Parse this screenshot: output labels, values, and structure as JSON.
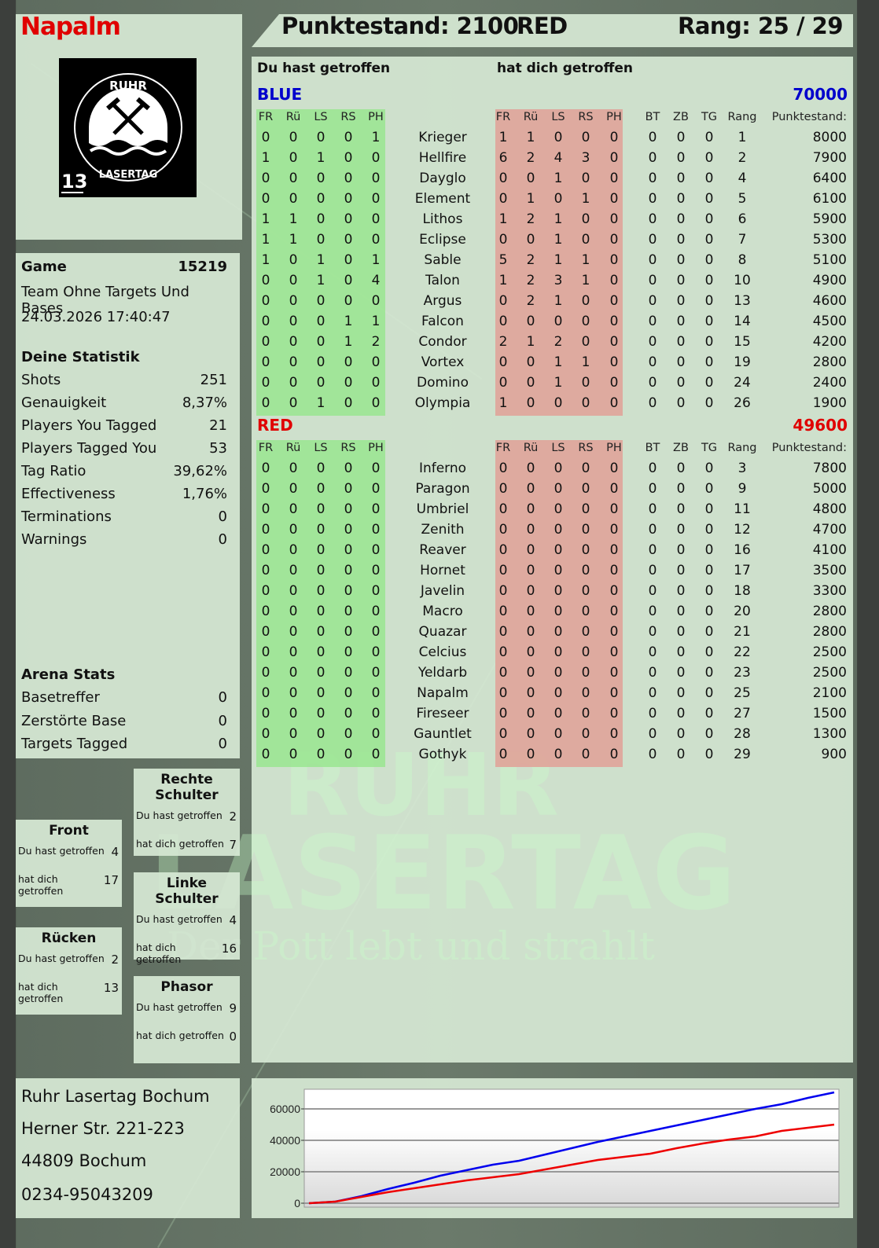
{
  "player": {
    "name": "Napalm",
    "logo_text": "RUHR LASERTAG",
    "logo_number": "13"
  },
  "header": {
    "score_label": "Punktestand: 2100",
    "team": "RED",
    "rank_label": "Rang: 25 / 29"
  },
  "main": {
    "you_hit_label": "Du hast getroffen",
    "hit_you_label": "hat dich getroffen",
    "columns_hits": [
      "FR",
      "Rü",
      "LS",
      "RS",
      "PH"
    ],
    "columns_extra": [
      "BT",
      "ZB",
      "TG",
      "Rang",
      "Punktestand:"
    ],
    "teams": [
      {
        "name": "BLUE",
        "color": "#0000cc",
        "total": "70000",
        "players": [
          {
            "name": "Krieger",
            "out": [
              0,
              0,
              0,
              0,
              1
            ],
            "in": [
              1,
              1,
              0,
              0,
              0
            ],
            "extra": [
              0,
              0,
              0
            ],
            "rank": 1,
            "score": 8000
          },
          {
            "name": "Hellfire",
            "out": [
              1,
              0,
              1,
              0,
              0
            ],
            "in": [
              6,
              2,
              4,
              3,
              0
            ],
            "extra": [
              0,
              0,
              0
            ],
            "rank": 2,
            "score": 7900
          },
          {
            "name": "Dayglo",
            "out": [
              0,
              0,
              0,
              0,
              0
            ],
            "in": [
              0,
              0,
              1,
              0,
              0
            ],
            "extra": [
              0,
              0,
              0
            ],
            "rank": 4,
            "score": 6400
          },
          {
            "name": "Element",
            "out": [
              0,
              0,
              0,
              0,
              0
            ],
            "in": [
              0,
              1,
              0,
              1,
              0
            ],
            "extra": [
              0,
              0,
              0
            ],
            "rank": 5,
            "score": 6100
          },
          {
            "name": "Lithos",
            "out": [
              1,
              1,
              0,
              0,
              0
            ],
            "in": [
              1,
              2,
              1,
              0,
              0
            ],
            "extra": [
              0,
              0,
              0
            ],
            "rank": 6,
            "score": 5900
          },
          {
            "name": "Eclipse",
            "out": [
              1,
              1,
              0,
              0,
              0
            ],
            "in": [
              0,
              0,
              1,
              0,
              0
            ],
            "extra": [
              0,
              0,
              0
            ],
            "rank": 7,
            "score": 5300
          },
          {
            "name": "Sable",
            "out": [
              1,
              0,
              1,
              0,
              1
            ],
            "in": [
              5,
              2,
              1,
              1,
              0
            ],
            "extra": [
              0,
              0,
              0
            ],
            "rank": 8,
            "score": 5100
          },
          {
            "name": "Talon",
            "out": [
              0,
              0,
              1,
              0,
              4
            ],
            "in": [
              1,
              2,
              3,
              1,
              0
            ],
            "extra": [
              0,
              0,
              0
            ],
            "rank": 10,
            "score": 4900
          },
          {
            "name": "Argus",
            "out": [
              0,
              0,
              0,
              0,
              0
            ],
            "in": [
              0,
              2,
              1,
              0,
              0
            ],
            "extra": [
              0,
              0,
              0
            ],
            "rank": 13,
            "score": 4600
          },
          {
            "name": "Falcon",
            "out": [
              0,
              0,
              0,
              1,
              1
            ],
            "in": [
              0,
              0,
              0,
              0,
              0
            ],
            "extra": [
              0,
              0,
              0
            ],
            "rank": 14,
            "score": 4500
          },
          {
            "name": "Condor",
            "out": [
              0,
              0,
              0,
              1,
              2
            ],
            "in": [
              2,
              1,
              2,
              0,
              0
            ],
            "extra": [
              0,
              0,
              0
            ],
            "rank": 15,
            "score": 4200
          },
          {
            "name": "Vortex",
            "out": [
              0,
              0,
              0,
              0,
              0
            ],
            "in": [
              0,
              0,
              1,
              1,
              0
            ],
            "extra": [
              0,
              0,
              0
            ],
            "rank": 19,
            "score": 2800
          },
          {
            "name": "Domino",
            "out": [
              0,
              0,
              0,
              0,
              0
            ],
            "in": [
              0,
              0,
              1,
              0,
              0
            ],
            "extra": [
              0,
              0,
              0
            ],
            "rank": 24,
            "score": 2400
          },
          {
            "name": "Olympia",
            "out": [
              0,
              0,
              1,
              0,
              0
            ],
            "in": [
              1,
              0,
              0,
              0,
              0
            ],
            "extra": [
              0,
              0,
              0
            ],
            "rank": 26,
            "score": 1900
          }
        ]
      },
      {
        "name": "RED",
        "color": "#e00000",
        "total": "49600",
        "players": [
          {
            "name": "Inferno",
            "out": [
              0,
              0,
              0,
              0,
              0
            ],
            "in": [
              0,
              0,
              0,
              0,
              0
            ],
            "extra": [
              0,
              0,
              0
            ],
            "rank": 3,
            "score": 7800
          },
          {
            "name": "Paragon",
            "out": [
              0,
              0,
              0,
              0,
              0
            ],
            "in": [
              0,
              0,
              0,
              0,
              0
            ],
            "extra": [
              0,
              0,
              0
            ],
            "rank": 9,
            "score": 5000
          },
          {
            "name": "Umbriel",
            "out": [
              0,
              0,
              0,
              0,
              0
            ],
            "in": [
              0,
              0,
              0,
              0,
              0
            ],
            "extra": [
              0,
              0,
              0
            ],
            "rank": 11,
            "score": 4800
          },
          {
            "name": "Zenith",
            "out": [
              0,
              0,
              0,
              0,
              0
            ],
            "in": [
              0,
              0,
              0,
              0,
              0
            ],
            "extra": [
              0,
              0,
              0
            ],
            "rank": 12,
            "score": 4700
          },
          {
            "name": "Reaver",
            "out": [
              0,
              0,
              0,
              0,
              0
            ],
            "in": [
              0,
              0,
              0,
              0,
              0
            ],
            "extra": [
              0,
              0,
              0
            ],
            "rank": 16,
            "score": 4100
          },
          {
            "name": "Hornet",
            "out": [
              0,
              0,
              0,
              0,
              0
            ],
            "in": [
              0,
              0,
              0,
              0,
              0
            ],
            "extra": [
              0,
              0,
              0
            ],
            "rank": 17,
            "score": 3500
          },
          {
            "name": "Javelin",
            "out": [
              0,
              0,
              0,
              0,
              0
            ],
            "in": [
              0,
              0,
              0,
              0,
              0
            ],
            "extra": [
              0,
              0,
              0
            ],
            "rank": 18,
            "score": 3300
          },
          {
            "name": "Macro",
            "out": [
              0,
              0,
              0,
              0,
              0
            ],
            "in": [
              0,
              0,
              0,
              0,
              0
            ],
            "extra": [
              0,
              0,
              0
            ],
            "rank": 20,
            "score": 2800
          },
          {
            "name": "Quazar",
            "out": [
              0,
              0,
              0,
              0,
              0
            ],
            "in": [
              0,
              0,
              0,
              0,
              0
            ],
            "extra": [
              0,
              0,
              0
            ],
            "rank": 21,
            "score": 2800
          },
          {
            "name": "Celcius",
            "out": [
              0,
              0,
              0,
              0,
              0
            ],
            "in": [
              0,
              0,
              0,
              0,
              0
            ],
            "extra": [
              0,
              0,
              0
            ],
            "rank": 22,
            "score": 2500
          },
          {
            "name": "Yeldarb",
            "out": [
              0,
              0,
              0,
              0,
              0
            ],
            "in": [
              0,
              0,
              0,
              0,
              0
            ],
            "extra": [
              0,
              0,
              0
            ],
            "rank": 23,
            "score": 2500
          },
          {
            "name": "Napalm",
            "out": [
              0,
              0,
              0,
              0,
              0
            ],
            "in": [
              0,
              0,
              0,
              0,
              0
            ],
            "extra": [
              0,
              0,
              0
            ],
            "rank": 25,
            "score": 2100
          },
          {
            "name": "Fireseer",
            "out": [
              0,
              0,
              0,
              0,
              0
            ],
            "in": [
              0,
              0,
              0,
              0,
              0
            ],
            "extra": [
              0,
              0,
              0
            ],
            "rank": 27,
            "score": 1500
          },
          {
            "name": "Gauntlet",
            "out": [
              0,
              0,
              0,
              0,
              0
            ],
            "in": [
              0,
              0,
              0,
              0,
              0
            ],
            "extra": [
              0,
              0,
              0
            ],
            "rank": 28,
            "score": 1300
          },
          {
            "name": "Gothyk",
            "out": [
              0,
              0,
              0,
              0,
              0
            ],
            "in": [
              0,
              0,
              0,
              0,
              0
            ],
            "extra": [
              0,
              0,
              0
            ],
            "rank": 29,
            "score": 900
          }
        ]
      }
    ]
  },
  "game": {
    "label": "Game",
    "number": "15219",
    "mode": "Team Ohne Targets Und Bases",
    "datetime": "24.03.2026 17:40:47"
  },
  "stats": {
    "title": "Deine Statistik",
    "rows": [
      {
        "label": "Shots",
        "value": "251"
      },
      {
        "label": "Genauigkeit",
        "value": "8,37%"
      },
      {
        "label": "Players You Tagged",
        "value": "21"
      },
      {
        "label": "Players Tagged You",
        "value": "53"
      },
      {
        "label": "Tag Ratio",
        "value": "39,62%"
      },
      {
        "label": "Effectiveness",
        "value": "1,76%"
      },
      {
        "label": "Terminations",
        "value": "0"
      },
      {
        "label": "Warnings",
        "value": "0"
      }
    ]
  },
  "arena": {
    "title": "Arena Stats",
    "rows": [
      {
        "label": "Basetreffer",
        "value": "0"
      },
      {
        "label": "Zerstörte Base",
        "value": "0"
      },
      {
        "label": "Targets Tagged",
        "value": "0"
      }
    ]
  },
  "zones": [
    {
      "title": "Front",
      "you_hit": "Du hast getroffen",
      "you_hit_value": "4",
      "hit_you": "hat dich getroffen",
      "hit_you_value": "17"
    },
    {
      "title": "Rücken",
      "you_hit": "Du hast getroffen",
      "you_hit_value": "2",
      "hit_you": "hat dich getroffen",
      "hit_you_value": "13"
    },
    {
      "title": "Rechte Schulter",
      "you_hit": "Du hast getroffen",
      "you_hit_value": "2",
      "hit_you": "hat dich getroffen",
      "hit_you_value": "7"
    },
    {
      "title": "Linke Schulter",
      "you_hit": "Du hast getroffen",
      "you_hit_value": "4",
      "hit_you": "hat dich getroffen",
      "hit_you_value": "16"
    },
    {
      "title": "Phasor",
      "you_hit": "Du hast getroffen",
      "you_hit_value": "9",
      "hit_you": "hat dich getroffen",
      "hit_you_value": "0"
    }
  ],
  "address": {
    "name": "Ruhr Lasertag Bochum",
    "street": "Herner Str. 221-223",
    "city": "44809 Bochum",
    "phone": "0234-95043209"
  },
  "watermark": {
    "line1": "RUHR",
    "line2": "LASERTAG",
    "slogan": "Der Pott lebt und strahlt"
  },
  "chart_data": {
    "type": "line",
    "title": "",
    "xlabel": "",
    "ylabel": "",
    "ylim": [
      0,
      72500
    ],
    "yticks": [
      "0",
      "20000",
      "40000",
      "60000"
    ],
    "grid": true,
    "legend": "none",
    "x": [
      0,
      1,
      2,
      3,
      4,
      5,
      6,
      7,
      8,
      9,
      10,
      11,
      12,
      13,
      14,
      15,
      16,
      17,
      18,
      19,
      20
    ],
    "series": [
      {
        "color": "#0000ee",
        "values": [
          0,
          1000,
          4500,
          9000,
          13000,
          17500,
          21000,
          24500,
          27000,
          31000,
          35000,
          39000,
          42500,
          46000,
          49500,
          53000,
          56500,
          60000,
          63000,
          67000,
          70500
        ]
      },
      {
        "color": "#ee0000",
        "values": [
          0,
          1000,
          4000,
          7000,
          9500,
          12000,
          14500,
          16500,
          18500,
          21500,
          24500,
          27500,
          29500,
          31500,
          35000,
          38000,
          40500,
          42500,
          46000,
          48000,
          50000
        ]
      }
    ]
  }
}
